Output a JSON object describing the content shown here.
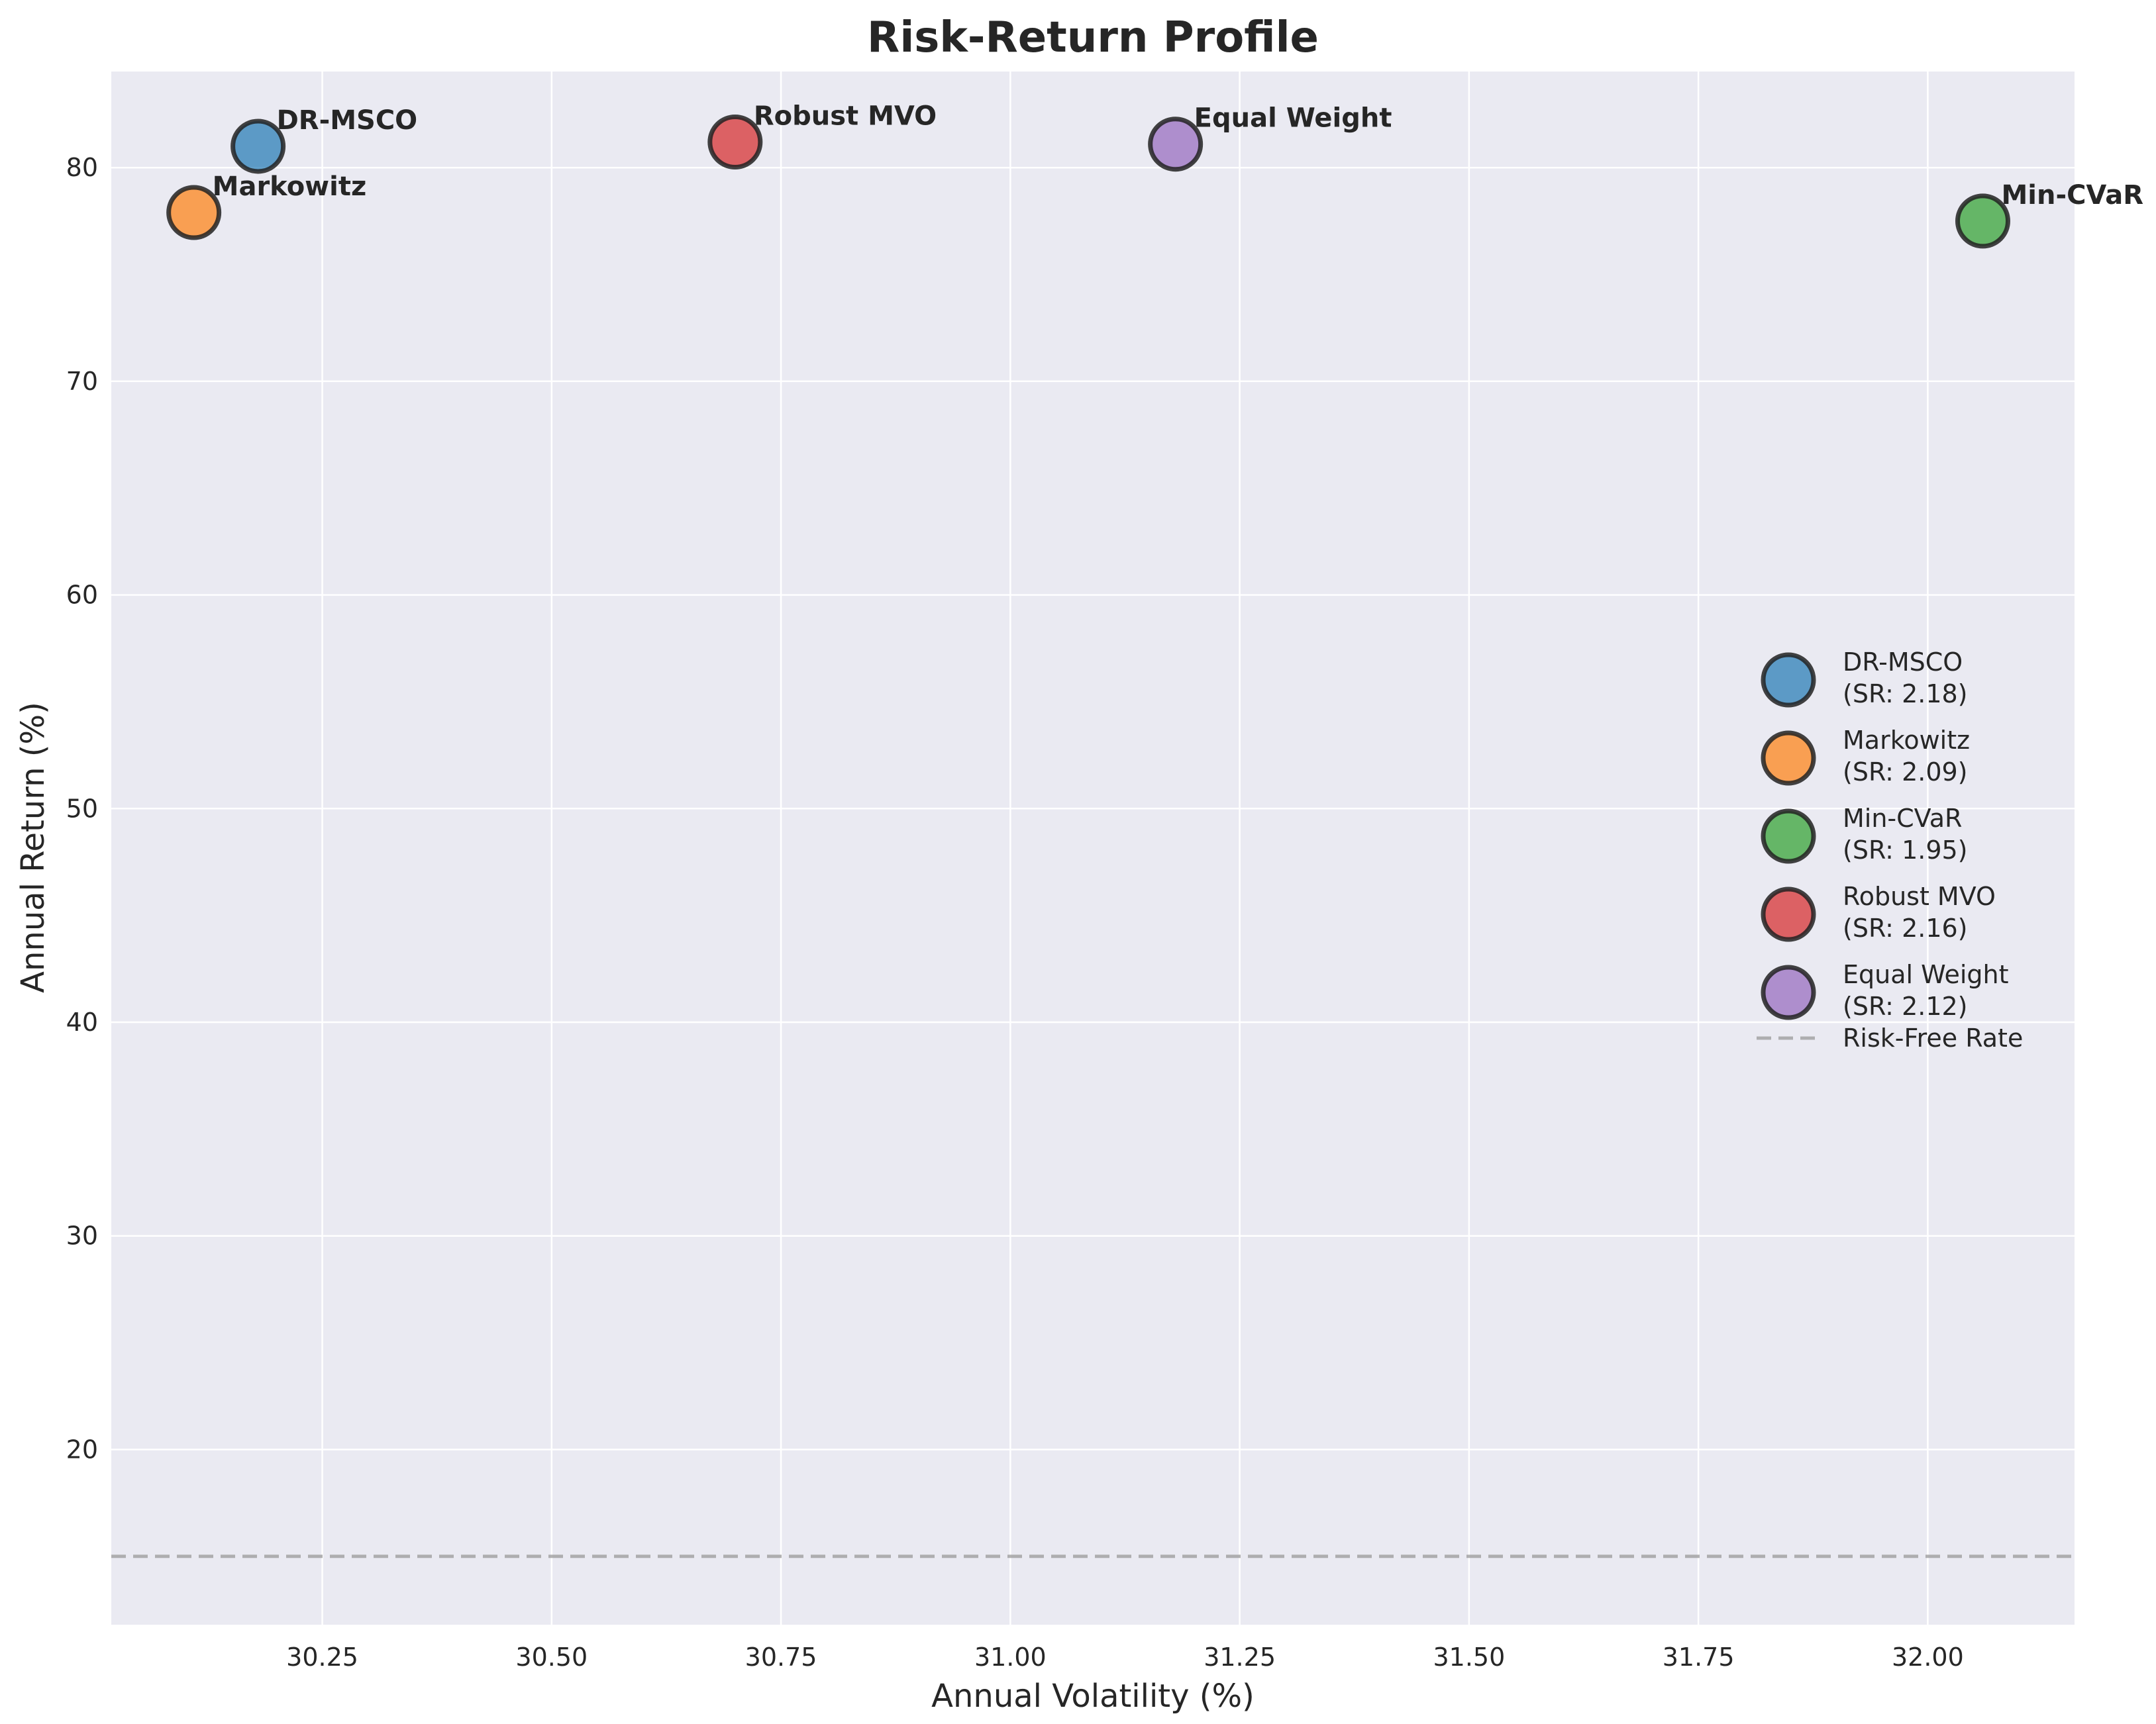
{
  "chart_data": {
    "type": "scatter",
    "title": "Risk-Return Profile",
    "xlabel": "Annual Volatility (%)",
    "ylabel": "Annual Return (%)",
    "xlim": [
      30.02,
      32.16
    ],
    "ylim": [
      11.8,
      84.5
    ],
    "x_ticks": [
      30.25,
      30.5,
      30.75,
      31.0,
      31.25,
      31.5,
      31.75,
      32.0
    ],
    "x_tick_labels": [
      "30.25",
      "30.50",
      "30.75",
      "31.00",
      "31.25",
      "31.50",
      "31.75",
      "32.00"
    ],
    "y_ticks": [
      20,
      30,
      40,
      50,
      60,
      70,
      80
    ],
    "y_tick_labels": [
      "20",
      "30",
      "40",
      "50",
      "60",
      "70",
      "80"
    ],
    "grid": true,
    "legend_position": "center-right",
    "series": [
      {
        "name": "DR-MSCO",
        "legend_label": "DR-MSCO",
        "legend_sublabel": "(SR: 2.18)",
        "x": 30.18,
        "y": 81.0,
        "color": "#1f77b4"
      },
      {
        "name": "Markowitz",
        "legend_label": "Markowitz",
        "legend_sublabel": "(SR: 2.09)",
        "x": 30.11,
        "y": 77.9,
        "color": "#ff7f0e"
      },
      {
        "name": "Min-CVaR",
        "legend_label": "Min-CVaR",
        "legend_sublabel": "(SR: 1.95)",
        "x": 32.06,
        "y": 77.5,
        "color": "#2ca02c"
      },
      {
        "name": "Robust MVO",
        "legend_label": "Robust MVO",
        "legend_sublabel": "(SR: 2.16)",
        "x": 30.7,
        "y": 81.2,
        "color": "#d62728"
      },
      {
        "name": "Equal Weight",
        "legend_label": "Equal Weight",
        "legend_sublabel": "(SR: 2.12)",
        "x": 31.18,
        "y": 81.1,
        "color": "#9467bd"
      }
    ],
    "reference_line": {
      "name": "Risk-Free Rate",
      "y": 15.0,
      "color": "#a0a0a0"
    }
  }
}
